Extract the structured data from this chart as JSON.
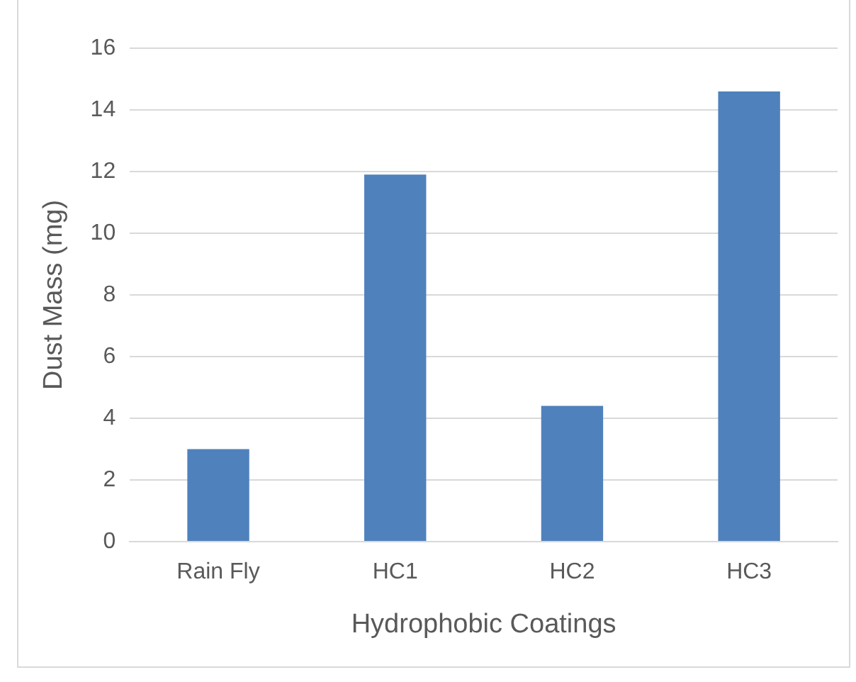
{
  "chart_data": {
    "type": "bar",
    "xlabel": "Hydrophobic Coatings",
    "ylabel": "Dust Mass (mg)",
    "categories": [
      "Rain Fly",
      "HC1",
      "HC2",
      "HC3"
    ],
    "values": [
      3.0,
      11.9,
      4.4,
      14.6
    ],
    "color": "#4f81bd",
    "ylim": [
      0,
      16
    ],
    "yticks": [
      0,
      2,
      4,
      6,
      8,
      10,
      12,
      14,
      16
    ],
    "grid": "y"
  }
}
